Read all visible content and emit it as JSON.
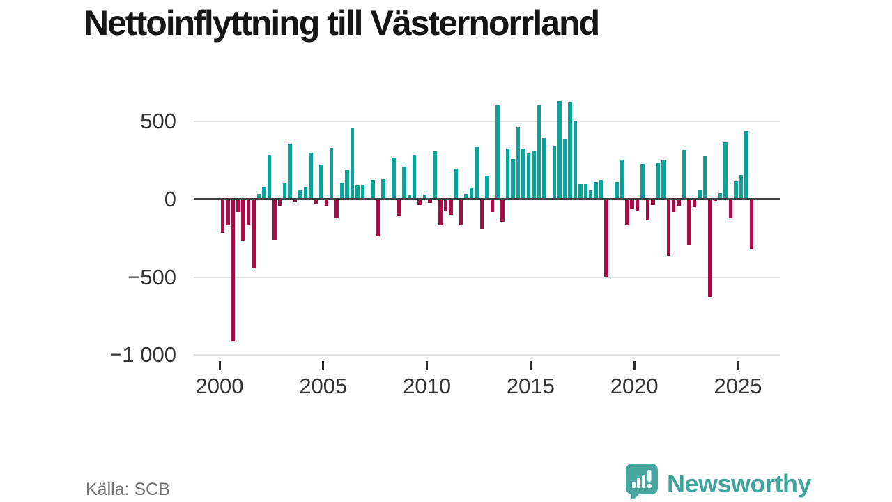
{
  "header": {
    "title": "Nettoinflyttning till Västernorrland"
  },
  "footer": {
    "source": "Källa: SCB",
    "brand": "Newsworthy",
    "brand_icon": "speech-bubble-bar-chart-icon"
  },
  "colors": {
    "positive_bar": "#0aa39a",
    "negative_bar": "#a40d45",
    "zero_axis": "#3c3c3c",
    "gridline": "#e2e2e2",
    "axis_text": "#333333",
    "source_text": "#6f6f6f",
    "brand_teal": "#3fa49c"
  },
  "chart_data": {
    "type": "bar",
    "title": "Nettoinflyttning till Västernorrland",
    "xlabel": "",
    "ylabel": "",
    "x_unit": "quarter",
    "ylim": [
      -1000,
      700
    ],
    "grid": "horizontal",
    "legend": "none",
    "yticks": [
      {
        "label": "500",
        "value": 500
      },
      {
        "label": "0",
        "value": 0
      },
      {
        "label": "−500",
        "value": -500
      },
      {
        "label": "−1 000",
        "value": -1000
      }
    ],
    "xticks": [
      {
        "label": "2000",
        "year": 2000
      },
      {
        "label": "2005",
        "year": 2005
      },
      {
        "label": "2010",
        "year": 2010
      },
      {
        "label": "2015",
        "year": 2015
      },
      {
        "label": "2020",
        "year": 2020
      },
      {
        "label": "2025",
        "year": 2025
      }
    ],
    "x": [
      "2000 Q1",
      "2000 Q2",
      "2000 Q3",
      "2000 Q4",
      "2001 Q1",
      "2001 Q2",
      "2001 Q3",
      "2001 Q4",
      "2002 Q1",
      "2002 Q2",
      "2002 Q3",
      "2002 Q4",
      "2003 Q1",
      "2003 Q2",
      "2003 Q3",
      "2003 Q4",
      "2004 Q1",
      "2004 Q2",
      "2004 Q3",
      "2004 Q4",
      "2005 Q1",
      "2005 Q2",
      "2005 Q3",
      "2005 Q4",
      "2006 Q1",
      "2006 Q2",
      "2006 Q3",
      "2006 Q4",
      "2007 Q1",
      "2007 Q2",
      "2007 Q3",
      "2007 Q4",
      "2008 Q1",
      "2008 Q2",
      "2008 Q3",
      "2008 Q4",
      "2009 Q1",
      "2009 Q2",
      "2009 Q3",
      "2009 Q4",
      "2010 Q1",
      "2010 Q2",
      "2010 Q3",
      "2010 Q4",
      "2011 Q1",
      "2011 Q2",
      "2011 Q3",
      "2011 Q4",
      "2012 Q1",
      "2012 Q2",
      "2012 Q3",
      "2012 Q4",
      "2013 Q1",
      "2013 Q2",
      "2013 Q3",
      "2013 Q4",
      "2014 Q1",
      "2014 Q2",
      "2014 Q3",
      "2014 Q4",
      "2015 Q1",
      "2015 Q2",
      "2015 Q3",
      "2015 Q4",
      "2016 Q1",
      "2016 Q2",
      "2016 Q3",
      "2016 Q4",
      "2017 Q1",
      "2017 Q2",
      "2017 Q3",
      "2017 Q4",
      "2018 Q1",
      "2018 Q2",
      "2018 Q3",
      "2018 Q4",
      "2019 Q1",
      "2019 Q2",
      "2019 Q3",
      "2019 Q4",
      "2020 Q1",
      "2020 Q2",
      "2020 Q3",
      "2020 Q4",
      "2021 Q1",
      "2021 Q2",
      "2021 Q3",
      "2021 Q4",
      "2022 Q1",
      "2022 Q2",
      "2022 Q3",
      "2022 Q4",
      "2023 Q1",
      "2023 Q2",
      "2023 Q3",
      "2023 Q4",
      "2024 Q1",
      "2024 Q2",
      "2024 Q3",
      "2024 Q4",
      "2025 Q1",
      "2025 Q2",
      "2025 Q3"
    ],
    "values": [
      -214,
      -169,
      -910,
      -84,
      -266,
      -169,
      -446,
      33,
      78,
      280,
      -262,
      -42,
      103,
      356,
      -19,
      57,
      78,
      299,
      -34,
      222,
      -42,
      328,
      -121,
      108,
      186,
      455,
      86,
      92,
      0,
      126,
      -240,
      127,
      0,
      266,
      -109,
      210,
      27,
      280,
      -39,
      28,
      -22,
      307,
      -165,
      -78,
      -100,
      195,
      -165,
      35,
      75,
      335,
      -190,
      151,
      -81,
      602,
      -144,
      323,
      257,
      465,
      323,
      294,
      310,
      603,
      392,
      0,
      338,
      629,
      385,
      622,
      500,
      97,
      95,
      58,
      110,
      123,
      -500,
      -8,
      112,
      253,
      -166,
      -64,
      -75,
      226,
      -135,
      -37,
      233,
      247,
      -362,
      -81,
      -43,
      317,
      -295,
      -49,
      62,
      277,
      -626,
      -16,
      40,
      364,
      -121,
      113,
      156,
      437,
      -320
    ]
  }
}
